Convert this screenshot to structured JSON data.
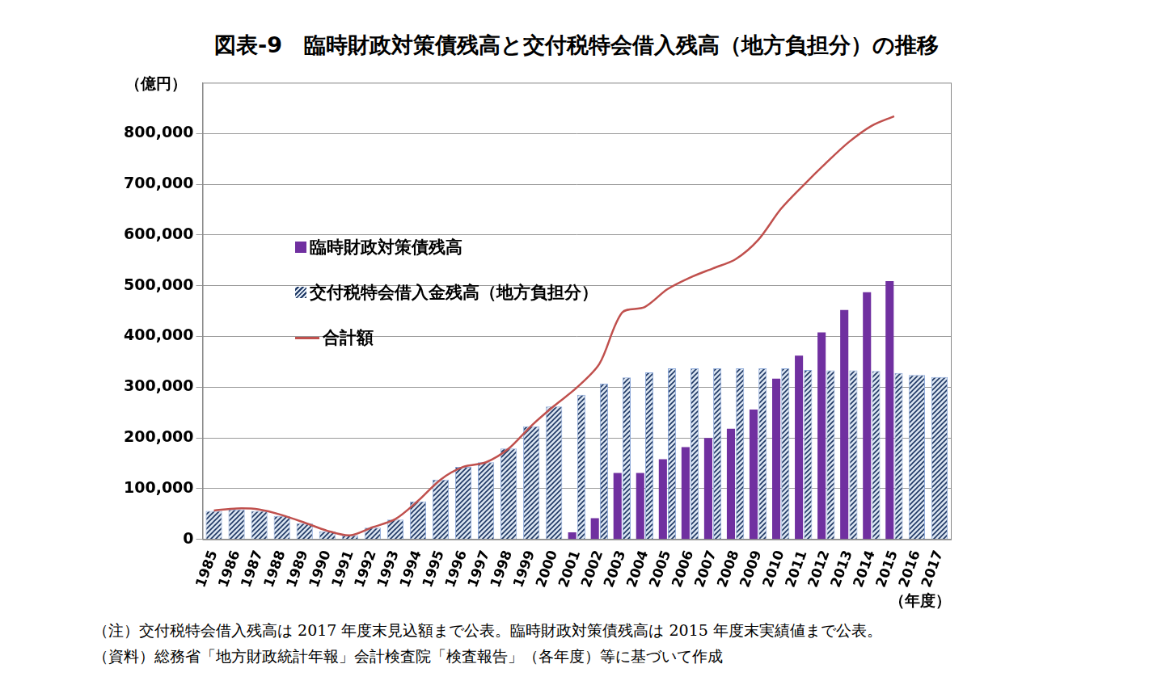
{
  "chart_data": {
    "type": "bar",
    "title": "図表-9　臨時財政対策債残高と交付税特会借入残高（地方負担分）の推移",
    "y_label": "（億円）",
    "x_label": "（年度）",
    "notes": [
      "（注）交付税特会借入残高は 2017 年度末見込額まで公表。臨時財政対策債残高は 2015 年度末実績値まで公表。",
      "（資料）総務省「地方財政統計年報」会計検査院「検査報告」（各年度）等に基づいて作成"
    ],
    "categories": [
      "1985",
      "1986",
      "1987",
      "1988",
      "1989",
      "1990",
      "1991",
      "1992",
      "1993",
      "1994",
      "1995",
      "1996",
      "1997",
      "1998",
      "1999",
      "2000",
      "2001",
      "2002",
      "2003",
      "2004",
      "2005",
      "2006",
      "2007",
      "2008",
      "2009",
      "2010",
      "2011",
      "2012",
      "2013",
      "2014",
      "2015",
      "2016",
      "2017"
    ],
    "series": [
      {
        "name": "臨時財政対策債残高",
        "type": "bar",
        "color": "#7030a0",
        "values": [
          null,
          null,
          null,
          null,
          null,
          null,
          null,
          null,
          null,
          null,
          null,
          null,
          null,
          null,
          null,
          null,
          14000,
          42000,
          131000,
          131000,
          158000,
          182000,
          200000,
          218000,
          256000,
          317000,
          362000,
          408000,
          452000,
          487000,
          509000,
          null,
          null
        ]
      },
      {
        "name": "交付税特会借入金残高（地方負担分）",
        "type": "bar",
        "color": "#1f3864",
        "values": [
          56000,
          59000,
          56000,
          46000,
          32000,
          16000,
          8000,
          23000,
          39000,
          75000,
          118000,
          143000,
          152000,
          179000,
          223000,
          262000,
          285000,
          307000,
          319000,
          329000,
          337000,
          337000,
          337000,
          337000,
          337000,
          337000,
          334000,
          333000,
          333000,
          332000,
          328000,
          324000,
          320000
        ]
      },
      {
        "name": "合計額",
        "type": "line",
        "color": "#c0504d",
        "marker": "none",
        "line_style": "solid",
        "values": [
          57000,
          61000,
          59000,
          48000,
          33000,
          17000,
          8000,
          24000,
          40000,
          76000,
          118000,
          143000,
          152000,
          179000,
          224000,
          263000,
          299000,
          346000,
          447000,
          458000,
          493000,
          516000,
          534000,
          552000,
          590000,
          651000,
          698000,
          742000,
          783000,
          815000,
          834000,
          null,
          null
        ]
      }
    ],
    "ylim": [
      0,
      900000
    ],
    "yticks": [
      0,
      {
        "value": 100000,
        "label": "100,000"
      },
      {
        "value": 200000,
        "label": "200,000"
      },
      {
        "value": 300000,
        "label": "300,000"
      },
      {
        "value": 400000,
        "label": "400,000"
      },
      {
        "value": 500000,
        "label": "500,000"
      },
      {
        "value": 600000,
        "label": "600,000"
      },
      {
        "value": 700000,
        "label": "700,000"
      },
      {
        "value": 800000,
        "label": "800,000"
      }
    ],
    "grid": true,
    "legend": "upper left"
  }
}
